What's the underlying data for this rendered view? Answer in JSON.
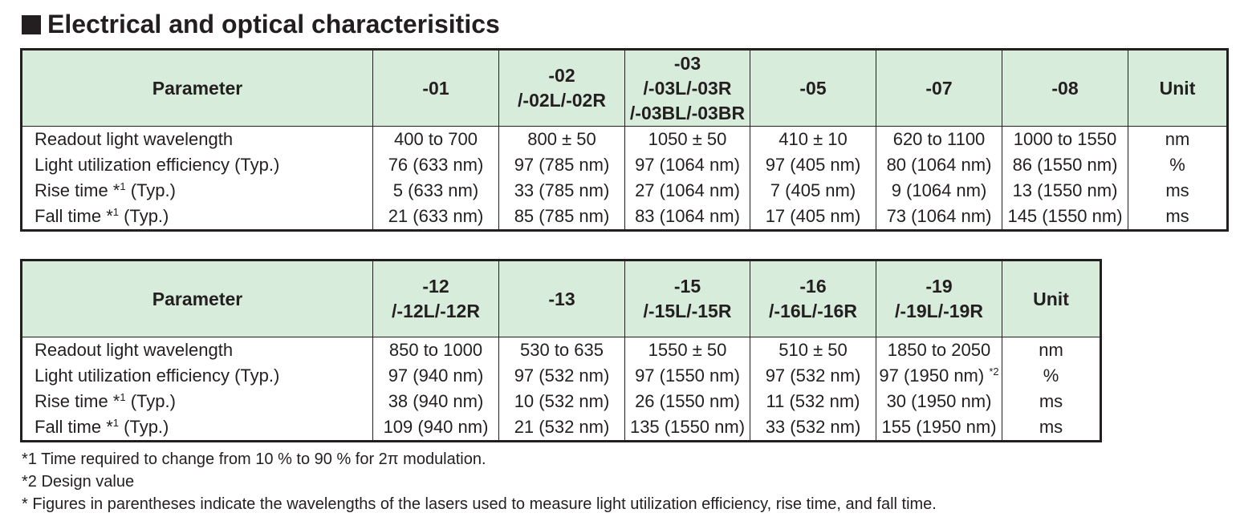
{
  "title": "Electrical and optical characterisitics",
  "tables": [
    {
      "headers": [
        [
          "Parameter"
        ],
        [
          "-01"
        ],
        [
          "-02",
          "/-02L/-02R"
        ],
        [
          "-03",
          "/-03L/-03R",
          "/-03BL/-03BR"
        ],
        [
          "-05"
        ],
        [
          "-07"
        ],
        [
          "-08"
        ],
        [
          "Unit"
        ]
      ],
      "rows": [
        [
          "Readout light wavelength",
          "400 to 700",
          "800 ± 50",
          "1050 ± 50",
          "410 ± 10",
          "620 to 1100",
          "1000 to 1550",
          "nm"
        ],
        [
          "Light utilization efficiency (Typ.)",
          "76 (633 nm)",
          "97 (785 nm)",
          "97 (1064 nm)",
          "97 (405 nm)",
          "80 (1064 nm)",
          "86 (1550 nm)",
          "%"
        ],
        [
          {
            "text": "Rise time *",
            "sup": "1",
            "post": " (Typ.)"
          },
          "5 (633 nm)",
          "33 (785 nm)",
          "27 (1064 nm)",
          "7 (405 nm)",
          "9 (1064 nm)",
          "13 (1550 nm)",
          "ms"
        ],
        [
          {
            "text": "Fall time *",
            "sup": "1",
            "post": " (Typ.)"
          },
          "21 (633 nm)",
          "85 (785 nm)",
          "83 (1064 nm)",
          "17 (405 nm)",
          "73 (1064 nm)",
          "145 (1550 nm)",
          "ms"
        ]
      ]
    },
    {
      "headers": [
        [
          "Parameter"
        ],
        [
          "-12",
          "/-12L/-12R"
        ],
        [
          "-13"
        ],
        [
          "-15",
          "/-15L/-15R"
        ],
        [
          "-16",
          "/-16L/-16R"
        ],
        [
          "-19",
          "/-19L/-19R"
        ],
        [
          "Unit"
        ]
      ],
      "rows": [
        [
          "Readout light wavelength",
          "850 to 1000",
          "530 to 635",
          "1550 ± 50",
          "510 ± 50",
          "1850 to 2050",
          "nm"
        ],
        [
          "Light utilization efficiency (Typ.)",
          "97 (940 nm)",
          "97 (532 nm)",
          "97 (1550 nm)",
          "97 (532 nm)",
          {
            "text": "97 (1950 nm) ",
            "sup": "*2",
            "post": ""
          },
          "%"
        ],
        [
          {
            "text": "Rise time *",
            "sup": "1",
            "post": " (Typ.)"
          },
          "38 (940 nm)",
          "10 (532 nm)",
          "26 (1550 nm)",
          "11 (532 nm)",
          "30 (1950 nm)",
          "ms"
        ],
        [
          {
            "text": "Fall time *",
            "sup": "1",
            "post": " (Typ.)"
          },
          "109 (940 nm)",
          "21 (532 nm)",
          "135 (1550 nm)",
          "33 (532 nm)",
          "155 (1950 nm)",
          "ms"
        ]
      ]
    }
  ],
  "footnotes": [
    "*1 Time required to change from 10 % to 90 % for 2π modulation.",
    "*2 Design value",
    "* Figures in parentheses indicate the wavelengths of the lasers used to measure light utilization efficiency, rise time, and fall time."
  ]
}
